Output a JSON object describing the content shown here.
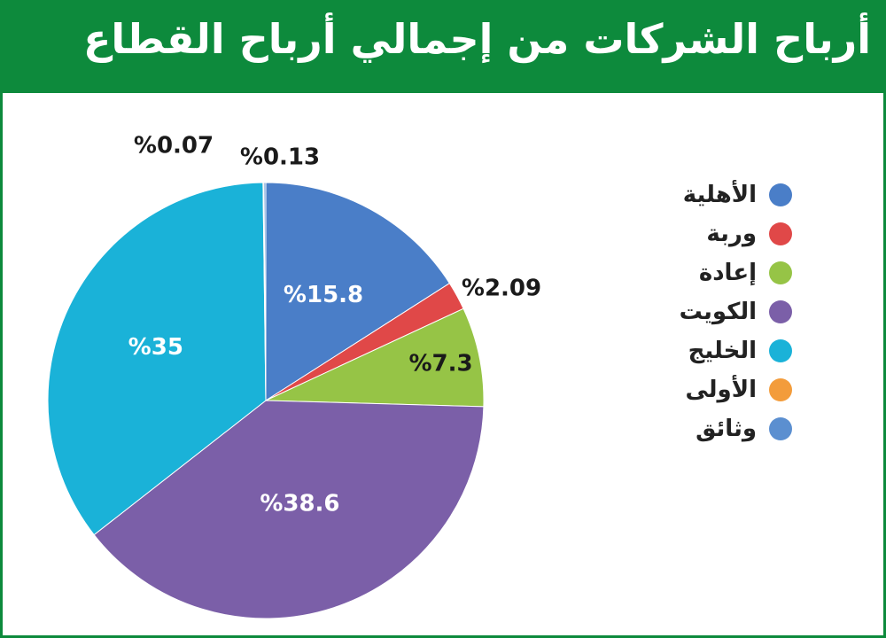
{
  "header": {
    "title": "أرباح الشركات من إجمالي أرباح القطاع"
  },
  "colors": {
    "header_bg": "#0d8a3c",
    "border": "#0d8a3c"
  },
  "chart_data": {
    "type": "pie",
    "title": "أرباح الشركات من إجمالي أرباح القطاع",
    "unit": "%",
    "start_angle": "12 o'clock",
    "direction": "clockwise",
    "legend_position": "right",
    "slices": [
      {
        "name": "الأهلية",
        "value": 15.8,
        "label": "%15.8",
        "color": "#4a7ec8",
        "label_placement": "inside"
      },
      {
        "name": "وربة",
        "value": 2.09,
        "label": "%2.09",
        "color": "#e04848",
        "label_placement": "outside"
      },
      {
        "name": "إعادة",
        "value": 7.3,
        "label": "%7.3",
        "color": "#96c446",
        "label_placement": "inside-dark"
      },
      {
        "name": "الكويت",
        "value": 38.6,
        "label": "%38.6",
        "color": "#7b5fa8",
        "label_placement": "inside"
      },
      {
        "name": "الخليج",
        "value": 35,
        "label": "%35",
        "color": "#1ab2d8",
        "label_placement": "inside"
      },
      {
        "name": "الأولى",
        "value": 0.07,
        "label": "%0.07",
        "color": "#f39c3b",
        "label_placement": "outside"
      },
      {
        "name": "وثائق",
        "value": 0.13,
        "label": "%0.13",
        "color": "#5b8fd0",
        "label_placement": "outside"
      }
    ]
  }
}
